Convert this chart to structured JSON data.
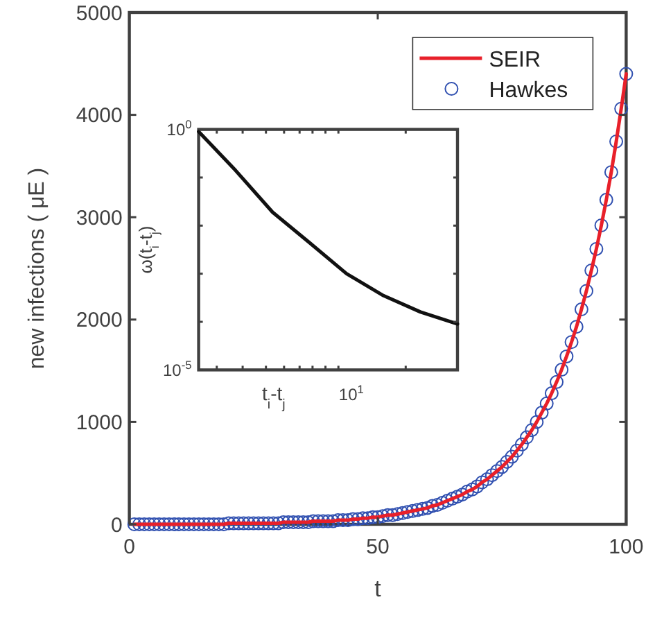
{
  "chart_data": [
    {
      "type": "line",
      "xlabel": "t",
      "ylabel": "new infections ( μE )",
      "x": [
        1,
        2,
        3,
        4,
        5,
        6,
        7,
        8,
        9,
        10,
        11,
        12,
        13,
        14,
        15,
        16,
        17,
        18,
        19,
        20,
        21,
        22,
        23,
        24,
        25,
        26,
        27,
        28,
        29,
        30,
        31,
        32,
        33,
        34,
        35,
        36,
        37,
        38,
        39,
        40,
        41,
        42,
        43,
        44,
        45,
        46,
        47,
        48,
        49,
        50,
        51,
        52,
        53,
        54,
        55,
        56,
        57,
        58,
        59,
        60,
        61,
        62,
        63,
        64,
        65,
        66,
        67,
        68,
        69,
        70,
        71,
        72,
        73,
        74,
        75,
        76,
        77,
        78,
        79,
        80,
        81,
        82,
        83,
        84,
        85,
        86,
        87,
        88,
        89,
        90,
        91,
        92,
        93,
        94,
        95,
        96,
        97,
        98,
        99,
        100
      ],
      "series": [
        {
          "name": "SEIR",
          "type": "line",
          "color": "#e8202a",
          "values": [
            0,
            0,
            0,
            0,
            0,
            0,
            0,
            0,
            0,
            0,
            0,
            0,
            0,
            0,
            0,
            0,
            0,
            0,
            0,
            10,
            10,
            10,
            10,
            10,
            10,
            10,
            10,
            10,
            10,
            10,
            20,
            20,
            20,
            20,
            20,
            20,
            30,
            30,
            30,
            30,
            30,
            40,
            40,
            40,
            50,
            50,
            60,
            60,
            70,
            70,
            80,
            90,
            90,
            100,
            110,
            120,
            130,
            140,
            150,
            160,
            180,
            190,
            210,
            230,
            250,
            270,
            290,
            320,
            340,
            370,
            410,
            440,
            480,
            520,
            560,
            610,
            660,
            720,
            780,
            850,
            920,
            1000,
            1090,
            1180,
            1280,
            1390,
            1510,
            1640,
            1780,
            1930,
            2100,
            2280,
            2480,
            2690,
            2920,
            3170,
            3440,
            3740,
            4060,
            4400
          ]
        },
        {
          "name": "Hawkes",
          "type": "scatter",
          "marker": "circle",
          "color": "#3050b0",
          "values": [
            0,
            0,
            0,
            0,
            0,
            0,
            0,
            0,
            0,
            0,
            0,
            0,
            0,
            0,
            0,
            0,
            0,
            0,
            0,
            10,
            10,
            10,
            10,
            10,
            10,
            10,
            10,
            10,
            10,
            10,
            20,
            20,
            20,
            20,
            20,
            20,
            30,
            30,
            30,
            30,
            30,
            40,
            40,
            40,
            50,
            50,
            60,
            60,
            70,
            70,
            80,
            90,
            90,
            100,
            110,
            120,
            130,
            140,
            150,
            160,
            180,
            190,
            210,
            230,
            250,
            270,
            290,
            320,
            340,
            370,
            410,
            440,
            480,
            520,
            560,
            610,
            660,
            720,
            780,
            850,
            920,
            1000,
            1090,
            1180,
            1280,
            1390,
            1510,
            1640,
            1780,
            1930,
            2100,
            2280,
            2480,
            2690,
            2920,
            3170,
            3440,
            3740,
            4060,
            4400
          ]
        }
      ],
      "xlim": [
        0,
        100
      ],
      "xticks": [
        0,
        50,
        100
      ],
      "ylim": [
        0,
        5000
      ],
      "yticks": [
        0,
        1000,
        2000,
        3000,
        4000,
        5000
      ],
      "legend": "top right"
    },
    {
      "type": "line",
      "xlabel": "t$_{i}$-t$_{j}$",
      "ylabel": "ω(t$_{i}$-t$_{j}$)",
      "log": "y",
      "categories": [
        null,
        null,
        null,
        null,
        null,
        null,
        null,
        null
      ],
      "series": [
        {
          "type": "line",
          "color": "#111111",
          "values": [
            0.9,
            0.14,
            0.019,
            0.0044,
            0.001,
            0.00035,
            0.00016,
            9e-05
          ]
        }
      ],
      "ylim": [
        1e-05,
        1
      ],
      "yticks": [
        {
          "value": 1e-05,
          "label": "10$^{-5}$"
        },
        {
          "value": 0.0001,
          "label": null
        },
        {
          "value": 0.001,
          "label": null
        },
        {
          "value": 0.01,
          "label": null
        },
        {
          "value": 0.1,
          "label": null
        },
        {
          "value": 1,
          "label": "10$^{0}$"
        }
      ],
      "annotations": [
        "10$^{1}$"
      ]
    }
  ]
}
